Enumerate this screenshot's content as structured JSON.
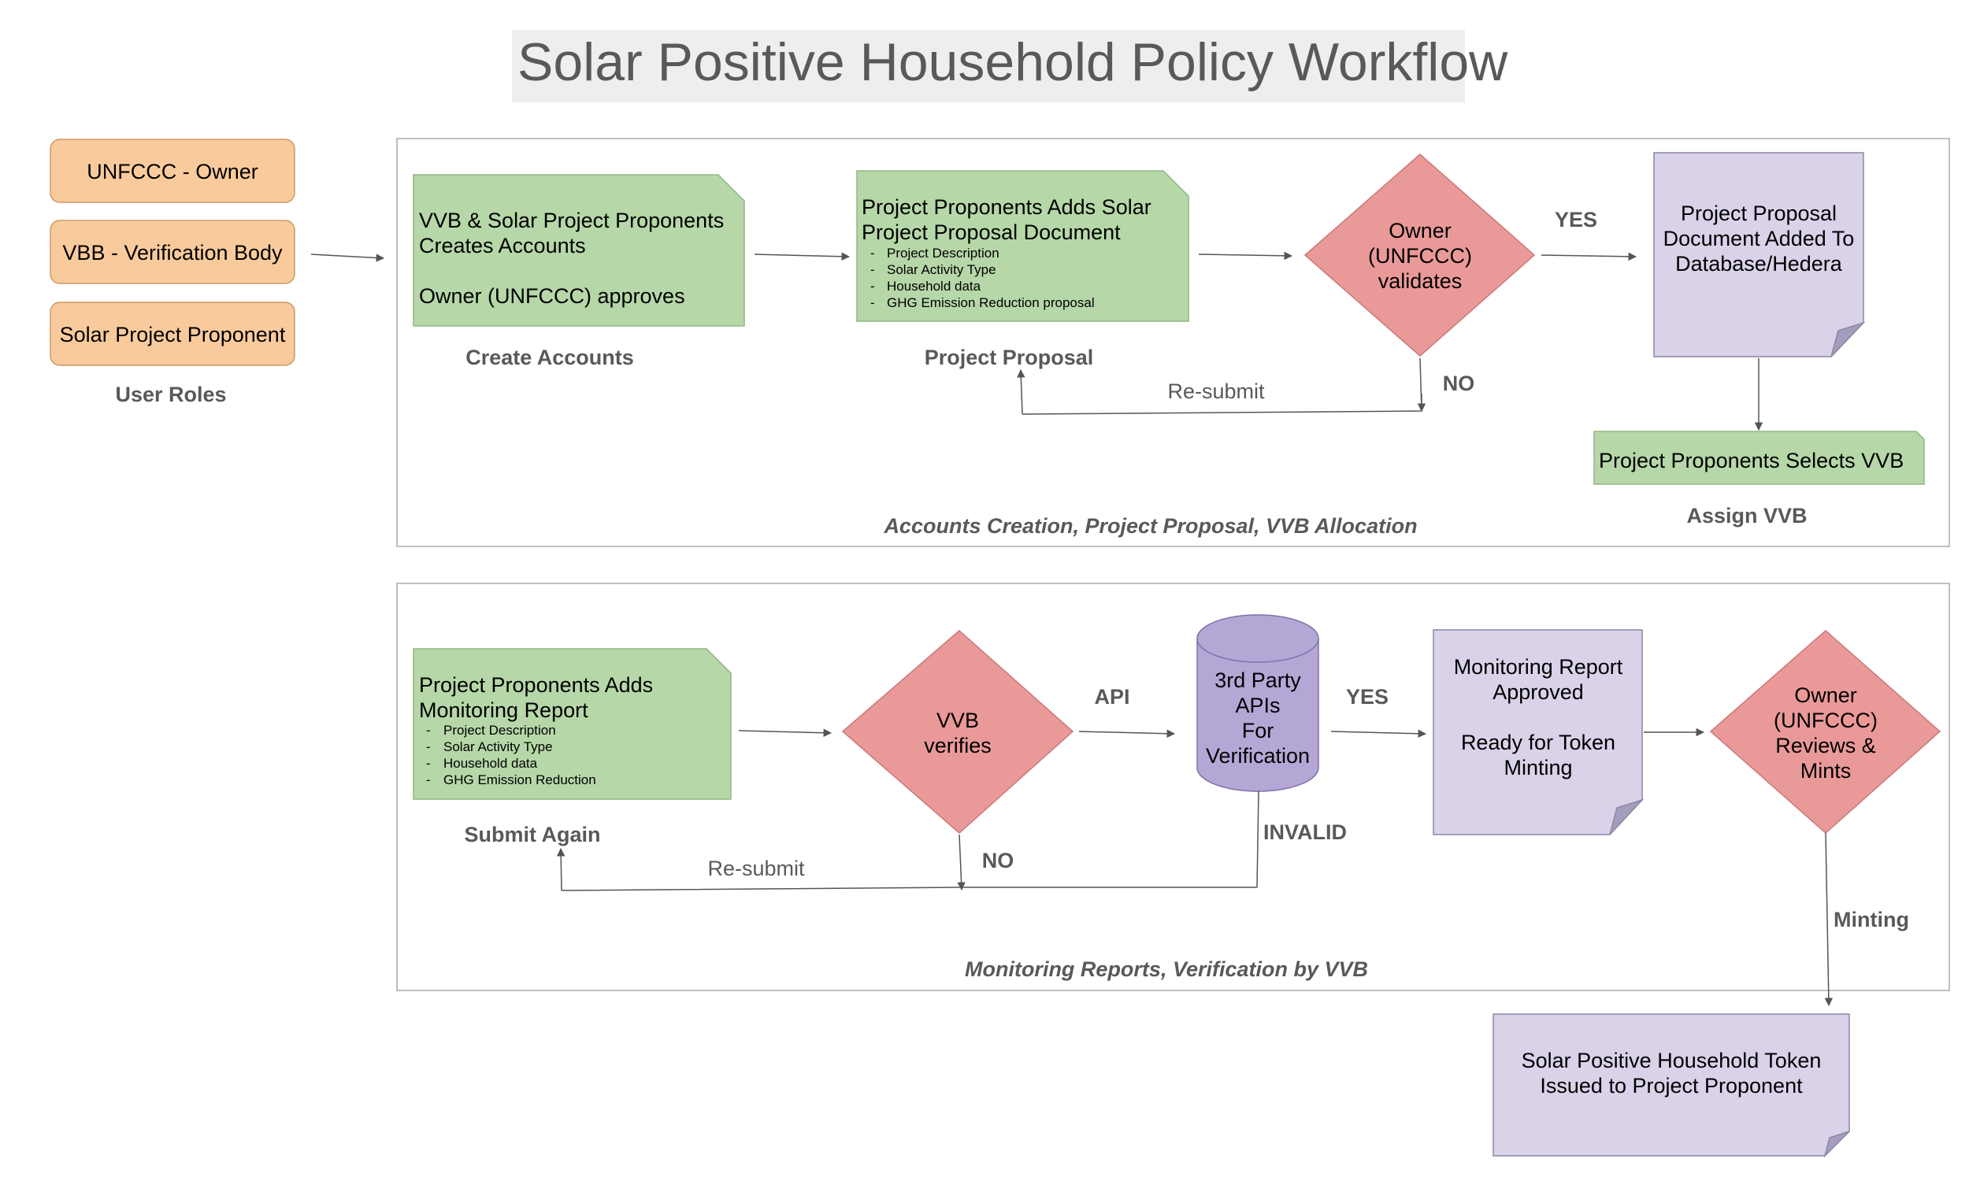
{
  "title": "Solar Positive Household Policy Workflow",
  "colors": {
    "role_fill": "#f9cb9c",
    "role_stroke": "#cc9966",
    "green_fill": "#b6d7a8",
    "green_stroke": "#93b584",
    "diamond_fill": "#ea9999",
    "diamond_stroke": "#c97878",
    "doc_fill": "#d9d2e9",
    "doc_stroke": "#8e86a6",
    "db_fill": "#b4a7d6",
    "title_bg": "#eeeeee"
  },
  "roles": {
    "items": [
      "UNFCCC - Owner",
      "VBB - Verification Body",
      "Solar Project Proponent"
    ],
    "caption": "User Roles"
  },
  "section1": {
    "caption": "Accounts Creation, Project Proposal, VVB Allocation",
    "create_accounts": {
      "lines": [
        "VVB & Solar Project Proponents",
        "Creates Accounts",
        "",
        "Owner (UNFCCC) approves"
      ],
      "caption": "Create Accounts"
    },
    "project_proposal": {
      "lines": [
        "Project Proponents Adds Solar",
        "Project Proposal Document"
      ],
      "bullets": [
        "Project Description",
        "Solar Activity Type",
        "Household data",
        "GHG Emission Reduction proposal"
      ],
      "caption": "Project Proposal"
    },
    "owner_validates": {
      "lines": [
        "Owner",
        "(UNFCCC)",
        "validates"
      ]
    },
    "yes_label": "YES",
    "no_label": "NO",
    "resubmit_label": "Re-submit",
    "added_to_db": {
      "lines": [
        "Project Proposal",
        "Document Added To",
        "Database/Hedera"
      ]
    },
    "selects_vvb": {
      "text": "Project Proponents Selects VVB",
      "caption": "Assign VVB"
    }
  },
  "section2": {
    "caption": "Monitoring Reports, Verification by VVB",
    "monitoring_report": {
      "lines": [
        "Project Proponents Adds",
        "Monitoring Report"
      ],
      "bullets": [
        "Project Description",
        "Solar Activity Type",
        "Household data",
        "GHG Emission Reduction"
      ],
      "caption": "Submit Again"
    },
    "vvb_verifies": {
      "lines": [
        "VVB",
        "verifies"
      ]
    },
    "api_label": "API",
    "third_party": {
      "lines": [
        "3rd Party",
        "APIs",
        "For",
        "Verification"
      ]
    },
    "yes_label": "YES",
    "no_label": "NO",
    "invalid_label": "INVALID",
    "resubmit_label": "Re-submit",
    "report_approved": {
      "lines": [
        "Monitoring Report",
        "Approved",
        "",
        "Ready for Token",
        "Minting"
      ]
    },
    "owner_mints": {
      "lines": [
        "Owner",
        "(UNFCCC)",
        "Reviews &",
        "Mints"
      ]
    },
    "minting_label": "Minting"
  },
  "token": {
    "lines": [
      "Solar Positive Household Token",
      "Issued to Project Proponent"
    ]
  }
}
